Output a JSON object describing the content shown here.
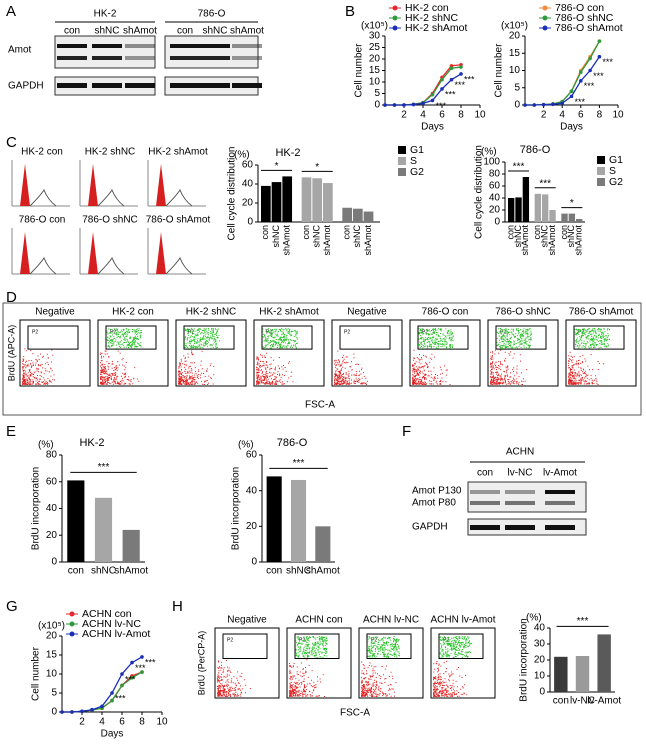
{
  "panel_letters": [
    "A",
    "B",
    "C",
    "D",
    "E",
    "F",
    "G",
    "H"
  ],
  "blot_a": {
    "groups": [
      "HK-2",
      "786-O"
    ],
    "lanes": [
      "con",
      "shNC",
      "shAmot",
      "con",
      "shNC",
      "shAmot"
    ],
    "rows": [
      "Amot",
      "GAPDH"
    ]
  },
  "cellcycle_c": {
    "labels": [
      "HK-2 con",
      "HK-2 shNC",
      "HK-2 shAmot",
      "786-O con",
      "786-O shNC",
      "786-O shAmot"
    ]
  },
  "flow_d": {
    "panels": [
      "Negative",
      "HK-2 con",
      "HK-2 shNC",
      "HK-2 shAmot",
      "Negative",
      "786-O con",
      "786-O shNC",
      "786-O shAmot"
    ],
    "gate": "P2",
    "ylabel": "BrdU  (APC-A)",
    "xlabel": "FSC-A"
  },
  "blot_f": {
    "cell": "ACHN",
    "lanes": [
      "con",
      "lv-NC",
      "lv-Amot"
    ],
    "rows": [
      "Amot P130",
      "Amot P80",
      "GAPDH"
    ]
  },
  "flow_h": {
    "panels": [
      "Negative",
      "ACHN con",
      "ACHN lv-NC",
      "ACHN lv-Amot"
    ],
    "gate": "P2",
    "ylabel": "BrdU  (PerCP-A)",
    "xlabel": "FSC-A"
  },
  "chart_data": [
    {
      "type": "line",
      "unit": "(x10⁵)",
      "ylabel": "Cell number",
      "xlabel": "Days",
      "x": [
        0,
        1,
        2,
        3,
        4,
        5,
        6,
        7,
        8
      ],
      "xlim": [
        0,
        10
      ],
      "xticks": [
        2,
        4,
        6,
        8,
        10
      ],
      "ylim": [
        0,
        30
      ],
      "yticks": [
        0,
        5,
        10,
        15,
        20,
        25,
        30
      ],
      "series": [
        {
          "name": "HK-2 con",
          "color": "#e8262a",
          "values": [
            0,
            0,
            0,
            0.3,
            1,
            5,
            12,
            17,
            17.5
          ]
        },
        {
          "name": "HK-2 shNC",
          "color": "#2e9a3a",
          "values": [
            0,
            0,
            0,
            0.3,
            1,
            4.5,
            11,
            16,
            16.5
          ]
        },
        {
          "name": "HK-2 shAmot",
          "color": "#1a2fb8",
          "values": [
            0,
            0,
            0,
            0.2,
            0.7,
            2,
            7,
            11,
            13.5
          ]
        }
      ],
      "annotations": [
        "***",
        "***",
        "***",
        "***"
      ]
    },
    {
      "type": "line",
      "unit": "(x10⁵)",
      "ylabel": "Cell number",
      "xlabel": "Days",
      "x": [
        0,
        1,
        2,
        3,
        4,
        5,
        6,
        7,
        8
      ],
      "xlim": [
        0,
        10
      ],
      "xticks": [
        2,
        4,
        6,
        8,
        10
      ],
      "ylim": [
        0,
        20
      ],
      "yticks": [
        0,
        5,
        10,
        15,
        20
      ],
      "series": [
        {
          "name": "786-O con",
          "color": "#f08a3c",
          "values": [
            0,
            0,
            0.1,
            0.3,
            1,
            4,
            10,
            14,
            18.5
          ]
        },
        {
          "name": "786-O shNC",
          "color": "#2e9a3a",
          "values": [
            0,
            0,
            0.1,
            0.3,
            1,
            4,
            9.5,
            13.5,
            18.5
          ]
        },
        {
          "name": "786-O shAmot",
          "color": "#1a2fb8",
          "values": [
            0,
            0,
            0.1,
            0.2,
            0.5,
            2.5,
            7,
            10,
            14
          ]
        }
      ],
      "annotations": [
        "***",
        "***",
        "***",
        "***"
      ]
    },
    {
      "type": "grouped-bar",
      "title": "HK-2",
      "unit": "(%)",
      "ylabel": "Cell cycle distribution",
      "categories": [
        "con",
        "shNC",
        "shAmot"
      ],
      "ylim": [
        0,
        60
      ],
      "yticks": [
        0,
        20,
        40,
        60
      ],
      "series": [
        {
          "name": "G1",
          "color": "#000000",
          "values": [
            38,
            42,
            48
          ]
        },
        {
          "name": "S",
          "color": "#a6a6a6",
          "values": [
            47,
            46,
            41
          ]
        },
        {
          "name": "G2",
          "color": "#7a7a7a",
          "values": [
            15,
            14,
            11
          ]
        }
      ],
      "annotations": [
        "*",
        "*"
      ]
    },
    {
      "type": "grouped-bar",
      "title": "786-O",
      "unit": "(%)",
      "ylabel": "Cell cycle distribution",
      "categories": [
        "con",
        "shNC",
        "shAmot"
      ],
      "ylim": [
        0,
        100
      ],
      "yticks": [
        0,
        20,
        40,
        60,
        80,
        100
      ],
      "series": [
        {
          "name": "G1",
          "color": "#000000",
          "values": [
            40,
            41,
            75
          ]
        },
        {
          "name": "S",
          "color": "#a6a6a6",
          "values": [
            47,
            46,
            20
          ]
        },
        {
          "name": "G2",
          "color": "#7a7a7a",
          "values": [
            14,
            14,
            5
          ]
        }
      ],
      "annotations": [
        "***",
        "***",
        "*"
      ]
    },
    {
      "type": "bar",
      "title": "HK-2",
      "unit": "(%)",
      "ylabel": "BrdU incorporation",
      "categories": [
        "con",
        "shNC",
        "shAmot"
      ],
      "values": [
        61,
        48,
        24
      ],
      "colors": [
        "#000000",
        "#a6a6a6",
        "#7a7a7a"
      ],
      "ylim": [
        0,
        80
      ],
      "yticks": [
        0,
        20,
        40,
        60,
        80
      ],
      "annotations": [
        "***"
      ]
    },
    {
      "type": "bar",
      "title": "786-O",
      "unit": "(%)",
      "ylabel": "BrdU incorporation",
      "categories": [
        "con",
        "shNC",
        "shAmot"
      ],
      "values": [
        48,
        46,
        20
      ],
      "colors": [
        "#000000",
        "#a6a6a6",
        "#7a7a7a"
      ],
      "ylim": [
        0,
        60
      ],
      "yticks": [
        0,
        20,
        40,
        60
      ],
      "annotations": [
        "***"
      ]
    },
    {
      "type": "line",
      "unit": "(x10⁵)",
      "ylabel": "Cell number",
      "xlabel": "Days",
      "x": [
        0,
        1,
        2,
        3,
        4,
        5,
        6,
        7,
        8
      ],
      "xlim": [
        0,
        10
      ],
      "xticks": [
        2,
        4,
        6,
        8,
        10
      ],
      "ylim": [
        0,
        20
      ],
      "yticks": [
        0,
        5,
        10,
        15,
        20
      ],
      "series": [
        {
          "name": "ACHN con",
          "color": "#e8262a",
          "values": [
            0,
            0,
            0.2,
            0.5,
            1,
            3,
            7,
            9.5,
            10.5
          ]
        },
        {
          "name": "ACHN lv-NC",
          "color": "#2e9a3a",
          "values": [
            0,
            0,
            0.2,
            0.5,
            1,
            3,
            7,
            9,
            10.5
          ]
        },
        {
          "name": "ACHN lv-Amot",
          "color": "#1a2fb8",
          "values": [
            0,
            0,
            0.2,
            0.6,
            1.5,
            5,
            10,
            13,
            14.5
          ]
        }
      ],
      "annotations": [
        "***",
        "***",
        "***",
        "***"
      ]
    },
    {
      "type": "bar",
      "unit": "(%)",
      "ylabel": "BrdU incorporation",
      "categories": [
        "con",
        "lv-NC",
        "lv-Amot"
      ],
      "values": [
        22,
        22.5,
        36
      ],
      "colors": [
        "#3a3a3a",
        "#9a9a9a",
        "#5a5a5a"
      ],
      "ylim": [
        0,
        40
      ],
      "yticks": [
        0,
        10,
        20,
        30,
        40
      ],
      "annotations": [
        "***"
      ]
    }
  ]
}
